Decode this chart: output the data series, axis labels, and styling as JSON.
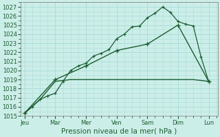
{
  "background_color": "#cceee8",
  "grid_color": "#aaddda",
  "line_color": "#1a5c30",
  "xlabel": "Pression niveau de la mer( hPa )",
  "ylim": [
    1015,
    1027.5
  ],
  "yticks": [
    1015,
    1016,
    1017,
    1018,
    1019,
    1020,
    1021,
    1022,
    1023,
    1024,
    1025,
    1026,
    1027
  ],
  "xtick_labels": [
    "Jeu",
    "Mar",
    "Mer",
    "Ven",
    "Sam",
    "Dim",
    "Lun"
  ],
  "xtick_positions": [
    0,
    24,
    48,
    72,
    96,
    120,
    144
  ],
  "xlim": [
    -3,
    151
  ],
  "series1_x": [
    0,
    6,
    12,
    18,
    24,
    30,
    36,
    42,
    48,
    54,
    60,
    66,
    72,
    78,
    84,
    90,
    96,
    102,
    108,
    114,
    120,
    126,
    132,
    138,
    144
  ],
  "series1_y": [
    1015.3,
    1016.0,
    1016.8,
    1017.2,
    1017.5,
    1018.8,
    1020.0,
    1020.5,
    1020.8,
    1021.6,
    1021.9,
    1022.3,
    1023.5,
    1024.0,
    1024.8,
    1024.9,
    1025.8,
    1026.3,
    1027.0,
    1026.4,
    1025.4,
    1025.1,
    1024.9,
    1021.5,
    1018.8
  ],
  "series2_x": [
    0,
    12,
    24,
    36,
    48,
    60,
    72,
    84,
    96,
    108,
    120,
    132,
    144
  ],
  "series2_y": [
    1015.3,
    1016.8,
    1018.8,
    1019.0,
    1019.0,
    1019.0,
    1019.0,
    1019.0,
    1019.0,
    1019.0,
    1019.0,
    1019.0,
    1018.8
  ],
  "series3_x": [
    0,
    24,
    48,
    72,
    96,
    120,
    144
  ],
  "series3_y": [
    1015.3,
    1019.0,
    1020.5,
    1022.2,
    1022.9,
    1025.0,
    1018.8
  ]
}
